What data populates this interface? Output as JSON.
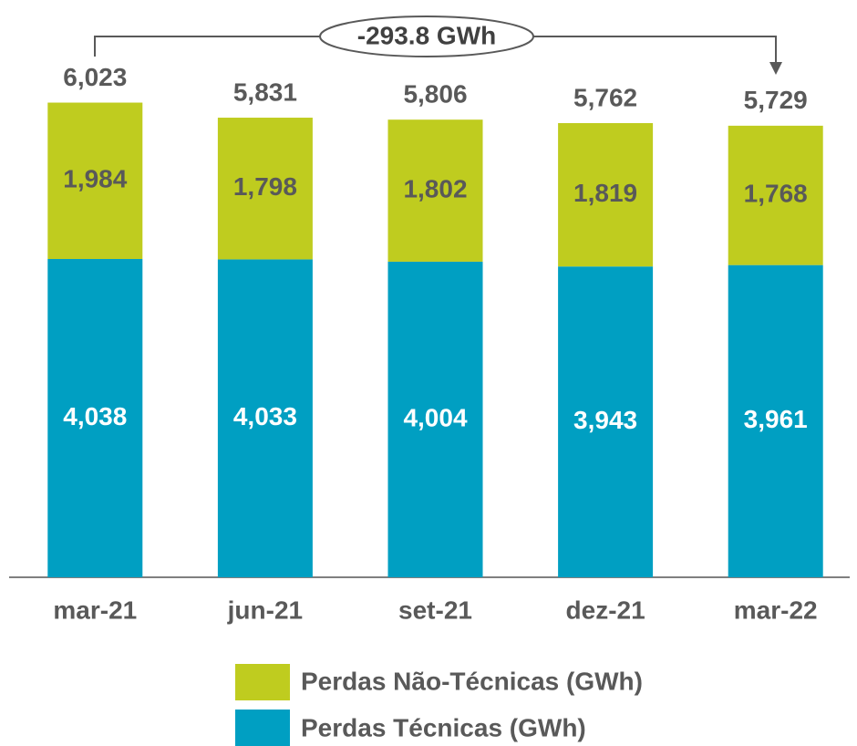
{
  "chart_data": {
    "type": "stacked_bar",
    "categories": [
      "mar-21",
      "jun-21",
      "set-21",
      "dez-21",
      "mar-22"
    ],
    "series": [
      {
        "name": "Perdas Técnicas (GWh)",
        "color": "#009fc2",
        "values": [
          4038,
          4033,
          4004,
          3943,
          3961
        ],
        "value_labels": [
          "4,038",
          "4,033",
          "4,004",
          "3,943",
          "3,961"
        ]
      },
      {
        "name": "Perdas Não-Técnicas (GWh)",
        "color": "#bfcc1f",
        "values": [
          1984,
          1798,
          1802,
          1819,
          1768
        ],
        "value_labels": [
          "1,984",
          "1,798",
          "1,802",
          "1,819",
          "1,768"
        ]
      }
    ],
    "totals": [
      6023,
      5831,
      5806,
      5762,
      5729
    ],
    "total_labels": [
      "6,023",
      "5,831",
      "5,806",
      "5,762",
      "5,729"
    ],
    "annotation": "-293.8 GWh",
    "ylim": [
      0,
      7000
    ]
  }
}
